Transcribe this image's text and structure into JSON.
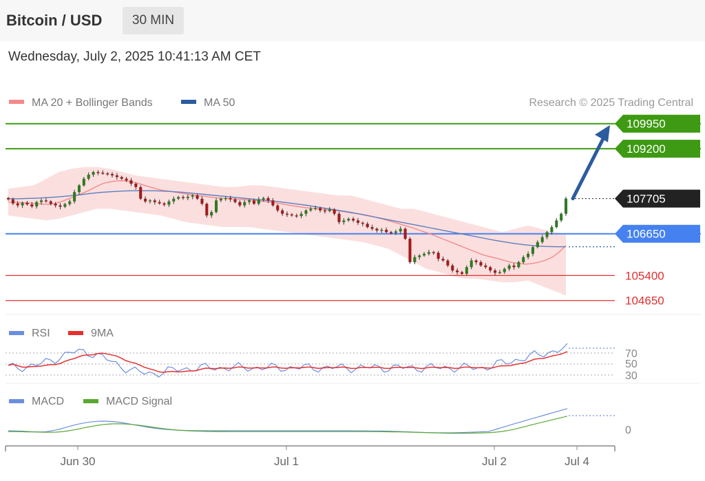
{
  "header": {
    "title": "Bitcoin / USD",
    "interval": "30 MIN",
    "timestamp": "Wednesday, July 2, 2025 10:41:13 AM CET"
  },
  "legend": {
    "ma20": {
      "label": "MA 20 + Bollinger Bands",
      "color": "#f4898a"
    },
    "ma50": {
      "label": "MA 50",
      "color": "#2c5b9e"
    },
    "copyright": "Research © 2025 Trading Central"
  },
  "chart_data": {
    "type": "candlestick",
    "price_axis": {
      "min": 104500,
      "max": 110150
    },
    "levels": [
      {
        "value": 109950,
        "label": "109950",
        "kind": "resistance",
        "color": "#3d9a12"
      },
      {
        "value": 109200,
        "label": "109200",
        "kind": "resistance",
        "color": "#3d9a12"
      },
      {
        "value": 107705,
        "label": "107705",
        "kind": "last",
        "color": "#222222"
      },
      {
        "value": 106650,
        "label": "106650",
        "kind": "pivot",
        "color": "#4682ef"
      },
      {
        "value": 105400,
        "label": "105400",
        "kind": "support",
        "color": "#e53030"
      },
      {
        "value": 104650,
        "label": "104650",
        "kind": "support",
        "color": "#e53030"
      }
    ],
    "target_arrow": {
      "from": 107705,
      "to": 109950,
      "color": "#2c5b9e"
    },
    "x_labels": [
      "Jun 30",
      "Jul 1",
      "Jul 2",
      "Jul 4"
    ],
    "closes": [
      107680,
      107560,
      107500,
      107580,
      107530,
      107470,
      107600,
      107650,
      107620,
      107550,
      107500,
      107460,
      107540,
      107620,
      107900,
      108100,
      108300,
      108420,
      108500,
      108480,
      108460,
      108440,
      108400,
      108350,
      108300,
      108250,
      108150,
      108050,
      107700,
      107620,
      107650,
      107600,
      107560,
      107520,
      107620,
      107700,
      107750,
      107720,
      107760,
      107800,
      107700,
      107550,
      107200,
      107300,
      107650,
      107700,
      107720,
      107680,
      107600,
      107500,
      107600,
      107650,
      107550,
      107680,
      107720,
      107650,
      107500,
      107350,
      107250,
      107230,
      107200,
      107180,
      107250,
      107350,
      107400,
      107420,
      107350,
      107330,
      107380,
      107250,
      107000,
      107050,
      107100,
      107050,
      106980,
      106950,
      106850,
      106800,
      106750,
      106770,
      106700,
      106680,
      106720,
      106800,
      106500,
      105800,
      105950,
      106000,
      106050,
      106100,
      106080,
      105900,
      105850,
      105700,
      105550,
      105500,
      105450,
      105650,
      105850,
      105800,
      105700,
      105650,
      105550,
      105480,
      105500,
      105600,
      105700,
      105650,
      105800,
      105950,
      106050,
      106250,
      106400,
      106550,
      106700,
      106850,
      107050,
      107250,
      107705
    ],
    "ma20": [
      107600,
      107590,
      107580,
      107570,
      107560,
      107540,
      107530,
      107560,
      107620,
      107700,
      107780,
      107860,
      107950,
      108050,
      108150,
      108200,
      108230,
      108240,
      108220,
      108180,
      108120,
      108060,
      108000,
      107950,
      107920,
      107890,
      107860,
      107830,
      107800,
      107780,
      107750,
      107730,
      107710,
      107700,
      107690,
      107680,
      107660,
      107640,
      107620,
      107600,
      107570,
      107540,
      107500,
      107470,
      107440,
      107420,
      107400,
      107380,
      107360,
      107340,
      107310,
      107280,
      107250,
      107220,
      107180,
      107130,
      107080,
      107020,
      106960,
      106900,
      106840,
      106770,
      106700,
      106630,
      106550,
      106470,
      106390,
      106310,
      106230,
      106150,
      106070,
      106000,
      105950,
      105900,
      105840,
      105790,
      105760,
      105740,
      105760,
      105800,
      105860,
      105950,
      106100,
      106300
    ],
    "ma50": [
      107700,
      107700,
      107710,
      107720,
      107740,
      107760,
      107790,
      107820,
      107860,
      107890,
      107910,
      107930,
      107940,
      107940,
      107940,
      107930,
      107910,
      107890,
      107860,
      107830,
      107800,
      107770,
      107740,
      107710,
      107680,
      107650,
      107620,
      107580,
      107540,
      107500,
      107450,
      107400,
      107350,
      107300,
      107240,
      107180,
      107120,
      107060,
      107000,
      106940,
      106880,
      106820,
      106760,
      106700,
      106640,
      106580,
      106520,
      106460,
      106410,
      106360,
      106320,
      106290,
      106270,
      106260,
      106260
    ],
    "bb_upper": [
      108000,
      108050,
      108100,
      108300,
      108500,
      108600,
      108650,
      108650,
      108600,
      108500,
      108400,
      108350,
      108300,
      108250,
      108200,
      108150,
      108100,
      108050,
      108050,
      108100,
      108100,
      108050,
      108000,
      107950,
      107900,
      107850,
      107800,
      107800,
      107700,
      107600,
      107500,
      107400,
      107400,
      107300,
      107200,
      107100,
      107000,
      106900,
      106800,
      106700,
      106800,
      106900,
      106800,
      106700,
      106650
    ],
    "bb_lower": [
      107200,
      107150,
      107100,
      107050,
      107100,
      107200,
      107300,
      107400,
      107400,
      107350,
      107300,
      107250,
      107200,
      107100,
      107000,
      106950,
      106900,
      106850,
      106850,
      106850,
      106800,
      106750,
      106700,
      106650,
      106600,
      106550,
      106500,
      106450,
      106400,
      106300,
      106200,
      106000,
      105800,
      105600,
      105500,
      105400,
      105300,
      105300,
      105250,
      105200,
      105200,
      105250,
      105100,
      104950,
      104800
    ],
    "rsi_panel": {
      "legend": [
        {
          "label": "RSI",
          "color": "#6b8ee0"
        },
        {
          "label": "9MA",
          "color": "#e53030"
        }
      ],
      "levels": [
        "70",
        "50",
        "30"
      ],
      "range": [
        20,
        80
      ]
    },
    "macd_panel": {
      "legend": [
        {
          "label": "MACD",
          "color": "#6b8ee0"
        },
        {
          "label": "MACD Signal",
          "color": "#5aa832"
        }
      ],
      "zero_label": "0"
    }
  }
}
